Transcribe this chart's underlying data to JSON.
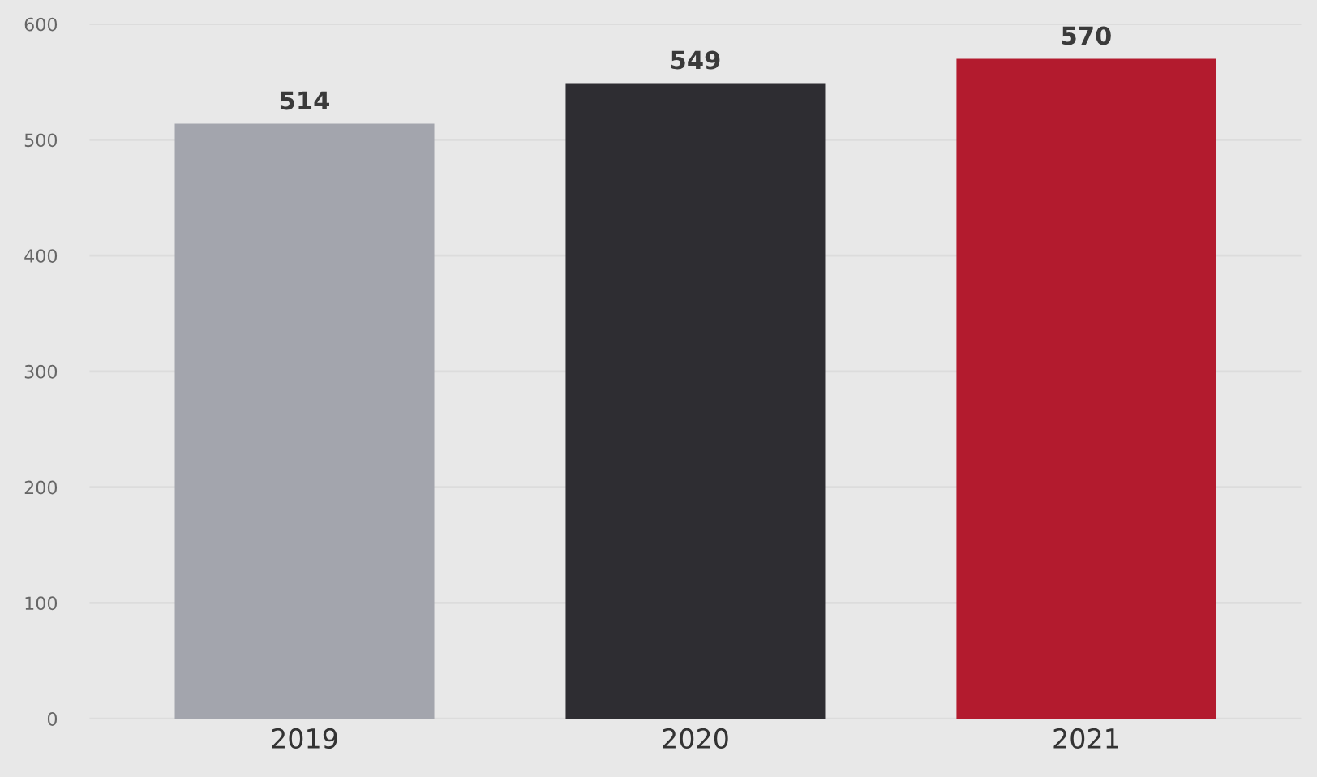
{
  "chart_data": {
    "type": "bar",
    "categories": [
      "2019",
      "2020",
      "2021"
    ],
    "values": [
      514,
      549,
      570
    ],
    "colors": [
      "#a3a5ad",
      "#2e2d32",
      "#b31b2e"
    ],
    "ylim": [
      0,
      600
    ],
    "yticks": [
      0,
      100,
      200,
      300,
      400,
      500,
      600
    ],
    "grid": "y",
    "data_labels": true
  }
}
